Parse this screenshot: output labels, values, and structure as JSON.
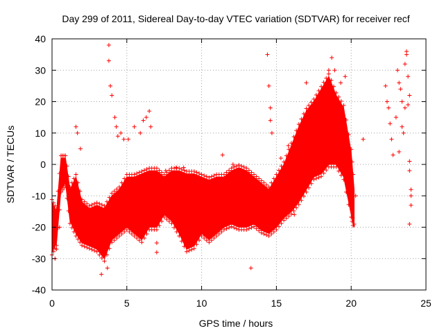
{
  "chart_data": {
    "type": "scatter",
    "title": "Day 299 of 2011, Sidereal Day-to-day VTEC variation (SDTVAR) for receiver recf",
    "xlabel": "GPS time / hours",
    "ylabel": "SDTVAR / TECUs",
    "xlim": [
      0,
      25
    ],
    "ylim": [
      -40,
      40
    ],
    "xticks": [
      0,
      5,
      10,
      15,
      20,
      25
    ],
    "yticks": [
      -40,
      -30,
      -20,
      -10,
      0,
      10,
      20,
      30,
      40
    ],
    "grid": true,
    "marker": "plus",
    "color": "#ff0000",
    "series": [
      {
        "name": "dense-envelope",
        "envelope": [
          {
            "x": 0.0,
            "lo": -28,
            "hi": -12
          },
          {
            "x": 0.3,
            "lo": -25,
            "hi": -15
          },
          {
            "x": 0.6,
            "lo": -8,
            "hi": 2
          },
          {
            "x": 0.9,
            "lo": -6,
            "hi": 2
          },
          {
            "x": 1.2,
            "lo": -18,
            "hi": -8
          },
          {
            "x": 1.6,
            "lo": -22,
            "hi": -4
          },
          {
            "x": 2.0,
            "lo": -25,
            "hi": -12
          },
          {
            "x": 2.5,
            "lo": -26,
            "hi": -14
          },
          {
            "x": 3.0,
            "lo": -27,
            "hi": -13
          },
          {
            "x": 3.5,
            "lo": -30,
            "hi": -14
          },
          {
            "x": 4.0,
            "lo": -24,
            "hi": -10
          },
          {
            "x": 4.5,
            "lo": -22,
            "hi": -8
          },
          {
            "x": 5.0,
            "lo": -20,
            "hi": -4
          },
          {
            "x": 5.5,
            "lo": -22,
            "hi": -4
          },
          {
            "x": 6.0,
            "lo": -24,
            "hi": -3
          },
          {
            "x": 6.5,
            "lo": -20,
            "hi": -2
          },
          {
            "x": 7.0,
            "lo": -20,
            "hi": -2
          },
          {
            "x": 7.5,
            "lo": -16,
            "hi": -4
          },
          {
            "x": 8.0,
            "lo": -18,
            "hi": -2
          },
          {
            "x": 8.5,
            "lo": -22,
            "hi": -2
          },
          {
            "x": 9.0,
            "lo": -27,
            "hi": -3
          },
          {
            "x": 9.5,
            "lo": -26,
            "hi": -3
          },
          {
            "x": 10.0,
            "lo": -22,
            "hi": -4
          },
          {
            "x": 10.5,
            "lo": -24,
            "hi": -5
          },
          {
            "x": 11.0,
            "lo": -22,
            "hi": -4
          },
          {
            "x": 11.5,
            "lo": -20,
            "hi": -4
          },
          {
            "x": 12.0,
            "lo": -19,
            "hi": -2
          },
          {
            "x": 12.5,
            "lo": -20,
            "hi": -1
          },
          {
            "x": 13.0,
            "lo": -20,
            "hi": -2
          },
          {
            "x": 13.5,
            "lo": -19,
            "hi": -4
          },
          {
            "x": 14.0,
            "lo": -21,
            "hi": -6
          },
          {
            "x": 14.5,
            "lo": -22,
            "hi": -8
          },
          {
            "x": 15.0,
            "lo": -20,
            "hi": -4
          },
          {
            "x": 15.5,
            "lo": -17,
            "hi": 0
          },
          {
            "x": 16.0,
            "lo": -15,
            "hi": 6
          },
          {
            "x": 16.5,
            "lo": -12,
            "hi": 12
          },
          {
            "x": 17.0,
            "lo": -8,
            "hi": 17
          },
          {
            "x": 17.5,
            "lo": -4,
            "hi": 20
          },
          {
            "x": 18.0,
            "lo": -3,
            "hi": 24
          },
          {
            "x": 18.5,
            "lo": 0,
            "hi": 28
          },
          {
            "x": 19.0,
            "lo": 0,
            "hi": 22
          },
          {
            "x": 19.5,
            "lo": -4,
            "hi": 18
          },
          {
            "x": 20.0,
            "lo": -16,
            "hi": 4
          },
          {
            "x": 20.2,
            "lo": -20,
            "hi": -8
          }
        ]
      },
      {
        "name": "scattered-points",
        "points": [
          [
            0.2,
            -30
          ],
          [
            0.3,
            -27
          ],
          [
            0.5,
            -20
          ],
          [
            1.6,
            12
          ],
          [
            1.7,
            10
          ],
          [
            1.9,
            5
          ],
          [
            2.3,
            -18
          ],
          [
            3.3,
            -35
          ],
          [
            3.7,
            -33
          ],
          [
            3.8,
            38
          ],
          [
            3.8,
            33
          ],
          [
            3.9,
            25
          ],
          [
            4.0,
            22
          ],
          [
            4.2,
            15
          ],
          [
            4.3,
            12
          ],
          [
            4.4,
            9
          ],
          [
            4.6,
            10
          ],
          [
            4.8,
            8
          ],
          [
            5.1,
            8
          ],
          [
            5.5,
            12
          ],
          [
            5.9,
            10
          ],
          [
            6.1,
            14
          ],
          [
            6.3,
            15
          ],
          [
            6.5,
            17
          ],
          [
            6.6,
            12
          ],
          [
            7.0,
            -25
          ],
          [
            7.0,
            -28
          ],
          [
            7.6,
            -2
          ],
          [
            8.3,
            -1
          ],
          [
            8.8,
            -1
          ],
          [
            9.2,
            -10
          ],
          [
            11.4,
            3
          ],
          [
            12.1,
            0
          ],
          [
            13.0,
            -4
          ],
          [
            13.3,
            -33
          ],
          [
            14.2,
            -16
          ],
          [
            14.4,
            35
          ],
          [
            14.5,
            25
          ],
          [
            14.6,
            18
          ],
          [
            14.6,
            14
          ],
          [
            14.7,
            10
          ],
          [
            15.3,
            2
          ],
          [
            15.8,
            6
          ],
          [
            16.2,
            -16
          ],
          [
            17.0,
            26
          ],
          [
            17.8,
            22
          ],
          [
            18.2,
            24
          ],
          [
            18.5,
            30
          ],
          [
            18.7,
            34
          ],
          [
            18.9,
            30
          ],
          [
            19.3,
            26
          ],
          [
            19.4,
            15
          ],
          [
            19.6,
            28
          ],
          [
            20.1,
            -17
          ],
          [
            20.2,
            -19
          ],
          [
            20.3,
            -10
          ],
          [
            20.8,
            8
          ],
          [
            22.3,
            25
          ],
          [
            22.4,
            20
          ],
          [
            22.5,
            18
          ],
          [
            22.6,
            13
          ],
          [
            22.7,
            8
          ],
          [
            22.8,
            3
          ],
          [
            23.0,
            15
          ],
          [
            23.1,
            30
          ],
          [
            23.2,
            26
          ],
          [
            23.3,
            24
          ],
          [
            23.4,
            20
          ],
          [
            23.5,
            10
          ],
          [
            23.6,
            32
          ],
          [
            23.6,
            18
          ],
          [
            23.7,
            35
          ],
          [
            23.7,
            36
          ],
          [
            23.8,
            28
          ],
          [
            23.8,
            19
          ],
          [
            23.9,
            22
          ],
          [
            23.9,
            1
          ],
          [
            23.9,
            -2
          ],
          [
            24.0,
            -8
          ],
          [
            24.0,
            -10
          ],
          [
            24.0,
            -13
          ],
          [
            23.9,
            -19
          ],
          [
            23.4,
            12
          ],
          [
            23.2,
            4
          ]
        ]
      }
    ]
  }
}
